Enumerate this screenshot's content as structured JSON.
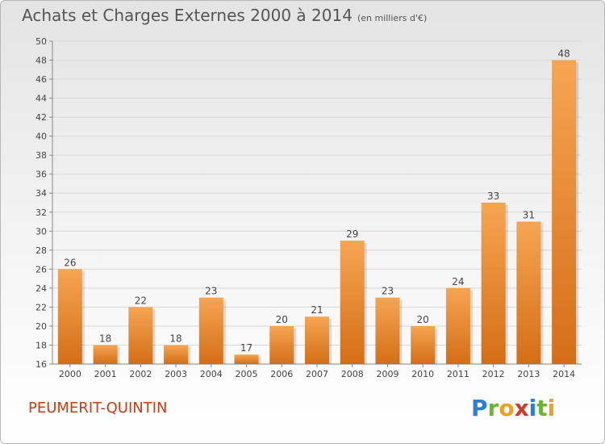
{
  "title": "Achats et Charges Externes 2000 à 2014",
  "subtitle": "(en milliers d'€)",
  "commune": "PEUMERIT-QUINTIN",
  "logo": {
    "text": "Proxiti",
    "letters": [
      {
        "char": "P",
        "color": "#2a7fd4"
      },
      {
        "char": "r",
        "color": "#6bb530"
      },
      {
        "char": "o",
        "color": "#f0a020"
      },
      {
        "char": "x",
        "color": "#d43a2a"
      },
      {
        "char": "i",
        "color": "#2a7fd4"
      },
      {
        "char": "t",
        "color": "#6bb530"
      },
      {
        "char": "i",
        "color": "#f0a020"
      }
    ]
  },
  "colors": {
    "bar_light": "#f6a552",
    "bar_dark": "#d46e16",
    "grid": "#d8d8d8",
    "text": "#444444",
    "title": "#555555",
    "commune": "#c83c12"
  },
  "chart_data": {
    "type": "bar",
    "categories": [
      "2000",
      "2001",
      "2002",
      "2003",
      "2004",
      "2005",
      "2006",
      "2007",
      "2008",
      "2009",
      "2010",
      "2011",
      "2012",
      "2013",
      "2014"
    ],
    "values": [
      26,
      18,
      22,
      18,
      23,
      17,
      20,
      21,
      29,
      23,
      20,
      24,
      33,
      31,
      48
    ],
    "ylim": [
      16,
      50
    ],
    "yticks": [
      16,
      18,
      20,
      22,
      24,
      26,
      28,
      30,
      32,
      34,
      36,
      38,
      40,
      42,
      44,
      46,
      48,
      50
    ],
    "grid": "horizontal",
    "data_labels": true
  }
}
